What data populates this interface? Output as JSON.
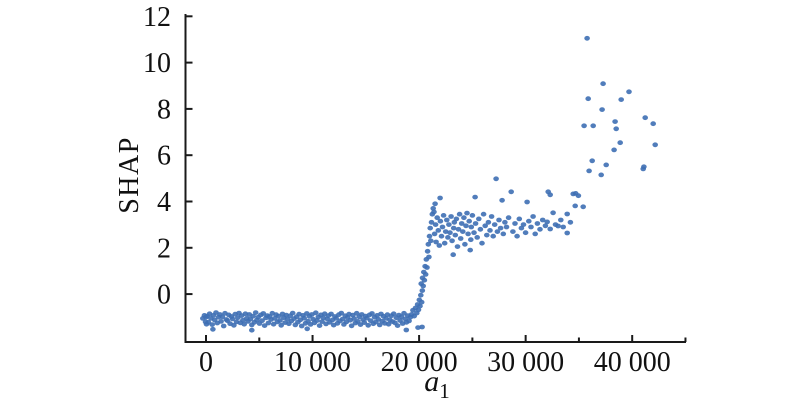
{
  "figure": {
    "background": "#ffffff"
  },
  "chart_data": {
    "type": "scatter",
    "title": "",
    "legend": null,
    "grid": false,
    "x_axis": {
      "label": "a",
      "label_sub": "1",
      "min": -1925,
      "max": 45050,
      "major_ticks": [
        {
          "value": 0,
          "label": "0"
        },
        {
          "value": 10000,
          "label": "10 000"
        },
        {
          "value": 20000,
          "label": "20 000"
        },
        {
          "value": 30000,
          "label": "30 000"
        },
        {
          "value": 40000,
          "label": "40 000"
        }
      ],
      "minor_tick_values": [
        5000,
        15000,
        25000,
        35000,
        45000
      ]
    },
    "y_axis": {
      "label": "SHAP",
      "min": -2.07,
      "max": 12.1,
      "ticks": [
        {
          "value": 0,
          "label": "0"
        },
        {
          "value": 2,
          "label": "2"
        },
        {
          "value": 4,
          "label": "4"
        },
        {
          "value": 6,
          "label": "6"
        },
        {
          "value": 8,
          "label": "8"
        },
        {
          "value": 10,
          "label": "10"
        },
        {
          "value": 12,
          "label": "12"
        }
      ]
    },
    "style": {
      "point_color": "#3E6FB4",
      "point_opacity": 0.9,
      "axis_color": "#1a1a1a",
      "point_rx": 2.8,
      "point_ry": 2.4
    },
    "points": [
      [
        -300,
        -1.05
      ],
      [
        -150,
        -0.92
      ],
      [
        -50,
        -1.2
      ],
      [
        0,
        -1.0
      ],
      [
        50,
        -1.3
      ],
      [
        100,
        -0.95
      ],
      [
        220,
        -1.22
      ],
      [
        340,
        -0.85
      ],
      [
        460,
        -1.05
      ],
      [
        580,
        -1.32
      ],
      [
        700,
        -0.92
      ],
      [
        820,
        -1.12
      ],
      [
        940,
        -0.8
      ],
      [
        1060,
        -1.25
      ],
      [
        1180,
        -1.0
      ],
      [
        1300,
        -0.88
      ],
      [
        1420,
        -1.18
      ],
      [
        1540,
        -0.98
      ],
      [
        1660,
        -1.38
      ],
      [
        1780,
        -0.83
      ],
      [
        1900,
        -1.1
      ],
      [
        2020,
        -1.15
      ],
      [
        2140,
        -0.9
      ],
      [
        2260,
        -1.28
      ],
      [
        2380,
        -0.97
      ],
      [
        2500,
        -1.07
      ],
      [
        2620,
        -1.35
      ],
      [
        2740,
        -0.87
      ],
      [
        2860,
        -1.2
      ],
      [
        2980,
        -1.02
      ],
      [
        3100,
        -0.82
      ],
      [
        3220,
        -1.24
      ],
      [
        3340,
        -0.93
      ],
      [
        3460,
        -1.13
      ],
      [
        3580,
        -1.3
      ],
      [
        3700,
        -0.85
      ],
      [
        3820,
        -1.05
      ],
      [
        3940,
        -1.18
      ],
      [
        4060,
        -0.88
      ],
      [
        4180,
        -1.08
      ],
      [
        4300,
        -1.33
      ],
      [
        4420,
        -0.95
      ],
      [
        4540,
        -1.22
      ],
      [
        4660,
        -0.8
      ],
      [
        4780,
        -1.12
      ],
      [
        4900,
        -1.0
      ],
      [
        5020,
        -1.27
      ],
      [
        5140,
        -0.9
      ],
      [
        5260,
        -1.15
      ],
      [
        5380,
        -0.84
      ],
      [
        5500,
        -1.36
      ],
      [
        5620,
        -1.03
      ],
      [
        5740,
        -0.93
      ],
      [
        5860,
        -1.25
      ],
      [
        5980,
        -0.97
      ],
      [
        6100,
        -1.1
      ],
      [
        6220,
        -0.83
      ],
      [
        6340,
        -1.3
      ],
      [
        6460,
        -1.05
      ],
      [
        6580,
        -0.89
      ],
      [
        6700,
        -1.2
      ],
      [
        6820,
        -0.95
      ],
      [
        6940,
        -1.14
      ],
      [
        7060,
        -1.35
      ],
      [
        7180,
        -0.86
      ],
      [
        7300,
        -1.02
      ],
      [
        7420,
        -1.23
      ],
      [
        7540,
        -0.91
      ],
      [
        7660,
        -1.08
      ],
      [
        7780,
        -1.28
      ],
      [
        7900,
        -0.94
      ],
      [
        8020,
        -1.16
      ],
      [
        8140,
        -0.82
      ],
      [
        8260,
        -1.06
      ],
      [
        8380,
        -1.33
      ],
      [
        8500,
        -0.98
      ],
      [
        8620,
        -1.21
      ],
      [
        8740,
        -0.87
      ],
      [
        8860,
        -1.11
      ],
      [
        8980,
        -1.38
      ],
      [
        9100,
        -0.92
      ],
      [
        9220,
        -1.04
      ],
      [
        9340,
        -1.26
      ],
      [
        9460,
        -0.84
      ],
      [
        9580,
        -1.17
      ],
      [
        9700,
        -0.96
      ],
      [
        9820,
        -1.31
      ],
      [
        9940,
        -0.88
      ],
      [
        10060,
        -1.09
      ],
      [
        10180,
        -1.24
      ],
      [
        10300,
        -0.81
      ],
      [
        10420,
        -1.14
      ],
      [
        10540,
        -0.99
      ],
      [
        10660,
        -1.36
      ],
      [
        10780,
        -0.9
      ],
      [
        10900,
        -1.19
      ],
      [
        11020,
        -1.03
      ],
      [
        11140,
        -0.85
      ],
      [
        11260,
        -1.29
      ],
      [
        11380,
        -1.07
      ],
      [
        11500,
        -0.93
      ],
      [
        11620,
        -1.22
      ],
      [
        11740,
        -0.86
      ],
      [
        11860,
        -1.12
      ],
      [
        11980,
        -1.34
      ],
      [
        12100,
        -0.97
      ],
      [
        12220,
        -1.05
      ],
      [
        12340,
        -1.26
      ],
      [
        12460,
        -0.89
      ],
      [
        12580,
        -1.16
      ],
      [
        12700,
        -0.82
      ],
      [
        12820,
        -1.08
      ],
      [
        12940,
        -1.31
      ],
      [
        13060,
        -0.94
      ],
      [
        13180,
        -1.2
      ],
      [
        13300,
        -1.01
      ],
      [
        13420,
        -0.87
      ],
      [
        13540,
        -1.13
      ],
      [
        13660,
        -1.37
      ],
      [
        13780,
        -0.91
      ],
      [
        13900,
        -1.06
      ],
      [
        14020,
        -1.25
      ],
      [
        14140,
        -0.83
      ],
      [
        14260,
        -1.18
      ],
      [
        14380,
        -0.98
      ],
      [
        14500,
        -1.32
      ],
      [
        14620,
        -0.88
      ],
      [
        14740,
        -1.1
      ],
      [
        14860,
        -1.23
      ],
      [
        14980,
        -0.95
      ],
      [
        15100,
        -1.04
      ],
      [
        15220,
        -1.35
      ],
      [
        15340,
        -0.9
      ],
      [
        15460,
        -1.15
      ],
      [
        15580,
        -0.84
      ],
      [
        15700,
        -1.28
      ],
      [
        15820,
        -1.0
      ],
      [
        15940,
        -1.21
      ],
      [
        16060,
        -0.92
      ],
      [
        16180,
        -1.09
      ],
      [
        16300,
        -1.33
      ],
      [
        16420,
        -0.86
      ],
      [
        16540,
        -1.17
      ],
      [
        16660,
        -0.96
      ],
      [
        16780,
        -1.26
      ],
      [
        16900,
        -1.05
      ],
      [
        17020,
        -0.89
      ],
      [
        17140,
        -1.3
      ],
      [
        17260,
        -1.12
      ],
      [
        17380,
        -0.94
      ],
      [
        17500,
        -1.19
      ],
      [
        17620,
        -0.85
      ],
      [
        17740,
        -1.24
      ],
      [
        17860,
        -1.02
      ],
      [
        17980,
        -1.36
      ],
      [
        18100,
        -0.91
      ],
      [
        18220,
        -1.14
      ],
      [
        18340,
        -0.98
      ],
      [
        18460,
        -1.27
      ],
      [
        18580,
        -0.83
      ],
      [
        18700,
        -1.07
      ],
      [
        18820,
        -1.22
      ],
      [
        18940,
        -0.93
      ],
      [
        19060,
        -1.16
      ],
      [
        19180,
        -1.0
      ],
      [
        19300,
        -0.88
      ],
      [
        19420,
        -0.7
      ],
      [
        19540,
        -0.95
      ],
      [
        19660,
        -0.6
      ],
      [
        19780,
        -0.82
      ],
      [
        19860,
        -0.45
      ],
      [
        19940,
        -0.68
      ],
      [
        20020,
        -0.25
      ],
      [
        20080,
        -0.52
      ],
      [
        20160,
        -0.05
      ],
      [
        20240,
        -0.35
      ],
      [
        20300,
        0.15
      ],
      [
        650,
        -1.52
      ],
      [
        4300,
        -1.56
      ],
      [
        9500,
        -1.5
      ],
      [
        18800,
        -1.55
      ],
      [
        19900,
        -1.45
      ],
      [
        20280,
        -1.42
      ],
      [
        20200,
        0.45
      ],
      [
        20320,
        0.7
      ],
      [
        20380,
        0.35
      ],
      [
        20440,
        0.95
      ],
      [
        20500,
        0.6
      ],
      [
        20560,
        1.2
      ],
      [
        20620,
        0.85
      ],
      [
        20680,
        1.5
      ],
      [
        20740,
        1.15
      ],
      [
        20800,
        1.85
      ],
      [
        20860,
        2.15
      ],
      [
        20920,
        1.6
      ],
      [
        20980,
        2.5
      ],
      [
        21040,
        2.85
      ],
      [
        21100,
        2.3
      ],
      [
        21160,
        3.1
      ],
      [
        21240,
        3.45
      ],
      [
        21320,
        3.7
      ],
      [
        21500,
        3.9
      ],
      [
        21970,
        4.15
      ],
      [
        21400,
        3.55
      ],
      [
        21450,
        2.6
      ],
      [
        21550,
        3.0
      ],
      [
        21600,
        2.25
      ],
      [
        21700,
        3.3
      ],
      [
        21800,
        2.75
      ],
      [
        21900,
        2.1
      ],
      [
        22000,
        3.15
      ],
      [
        22100,
        2.5
      ],
      [
        22200,
        2.9
      ],
      [
        22300,
        3.4
      ],
      [
        22400,
        2.2
      ],
      [
        22500,
        2.7
      ],
      [
        22600,
        3.2
      ],
      [
        22700,
        2.45
      ],
      [
        22800,
        3.0
      ],
      [
        22900,
        2.65
      ],
      [
        23000,
        3.35
      ],
      [
        23100,
        2.3
      ],
      [
        23200,
        1.7
      ],
      [
        23250,
        2.85
      ],
      [
        23300,
        3.1
      ],
      [
        23400,
        2.55
      ],
      [
        23500,
        3.25
      ],
      [
        23600,
        2.05
      ],
      [
        23700,
        2.8
      ],
      [
        23800,
        3.45
      ],
      [
        23900,
        2.4
      ],
      [
        24000,
        3.05
      ],
      [
        24100,
        2.7
      ],
      [
        24200,
        3.3
      ],
      [
        24300,
        2.15
      ],
      [
        24400,
        2.95
      ],
      [
        24500,
        3.5
      ],
      [
        24600,
        2.6
      ],
      [
        24700,
        3.15
      ],
      [
        24800,
        1.9
      ],
      [
        24850,
        2.35
      ],
      [
        24900,
        2.9
      ],
      [
        25000,
        3.4
      ],
      [
        25150,
        2.65
      ],
      [
        25260,
        4.19
      ],
      [
        25300,
        3.05
      ],
      [
        25450,
        2.45
      ],
      [
        25600,
        3.25
      ],
      [
        25750,
        2.8
      ],
      [
        25900,
        2.2
      ],
      [
        26050,
        3.45
      ],
      [
        26200,
        2.95
      ],
      [
        26350,
        2.55
      ],
      [
        26500,
        3.1
      ],
      [
        26650,
        2.75
      ],
      [
        26800,
        3.35
      ],
      [
        26950,
        2.5
      ],
      [
        27100,
        3.0
      ],
      [
        27230,
        4.98
      ],
      [
        27350,
        2.7
      ],
      [
        27500,
        3.2
      ],
      [
        27650,
        2.85
      ],
      [
        27790,
        4.05
      ],
      [
        27900,
        2.6
      ],
      [
        28050,
        3.1
      ],
      [
        28200,
        2.9
      ],
      [
        28400,
        3.3
      ],
      [
        28640,
        4.42
      ],
      [
        28800,
        2.7
      ],
      [
        29000,
        3.05
      ],
      [
        29200,
        2.5
      ],
      [
        29400,
        3.25
      ],
      [
        29600,
        2.85
      ],
      [
        29800,
        3.0
      ],
      [
        30000,
        2.65
      ],
      [
        30140,
        3.98
      ],
      [
        30300,
        3.15
      ],
      [
        30500,
        2.9
      ],
      [
        30700,
        3.35
      ],
      [
        30900,
        2.6
      ],
      [
        31100,
        3.05
      ],
      [
        31350,
        2.8
      ],
      [
        31600,
        3.2
      ],
      [
        31850,
        2.95
      ],
      [
        32020,
        3.12
      ],
      [
        32120,
        4.42
      ],
      [
        32300,
        4.29
      ],
      [
        32300,
        2.81
      ],
      [
        32580,
        3.51
      ],
      [
        32800,
        3.0
      ],
      [
        33050,
        2.94
      ],
      [
        33300,
        3.2
      ],
      [
        33520,
        2.9
      ],
      [
        33900,
        3.46
      ],
      [
        33900,
        2.64
      ],
      [
        34200,
        3.1
      ],
      [
        34460,
        4.33
      ],
      [
        34650,
        3.81
      ],
      [
        34700,
        4.35
      ],
      [
        34950,
        4.25
      ],
      [
        35400,
        3.77
      ],
      [
        35490,
        7.27
      ],
      [
        35770,
        11.05
      ],
      [
        35870,
        8.44
      ],
      [
        35960,
        5.32
      ],
      [
        36250,
        5.76
      ],
      [
        36340,
        7.27
      ],
      [
        37090,
        5.15
      ],
      [
        37180,
        7.97
      ],
      [
        37270,
        9.09
      ],
      [
        37560,
        5.58
      ],
      [
        38300,
        6.23
      ],
      [
        38400,
        7.45
      ],
      [
        38500,
        7.14
      ],
      [
        38870,
        6.54
      ],
      [
        38970,
        8.4
      ],
      [
        39700,
        8.74
      ],
      [
        41030,
        5.41
      ],
      [
        41100,
        5.5
      ],
      [
        41220,
        7.62
      ],
      [
        41970,
        7.36
      ],
      [
        42160,
        6.45
      ]
    ]
  }
}
